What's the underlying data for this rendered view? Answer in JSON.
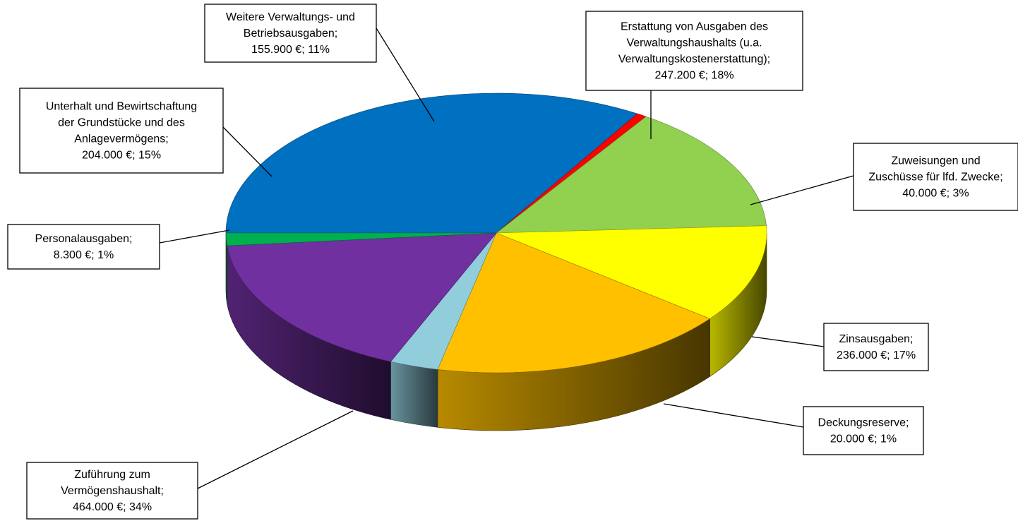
{
  "chart_data": {
    "type": "pie",
    "title": "",
    "slices": [
      {
        "key": "vermoegen",
        "lines": [
          "Zuführung zum",
          "Vermögenshaushalt;",
          "464.000 €; 34%"
        ],
        "value": 464000,
        "percent": 34,
        "color": "#0070C0"
      },
      {
        "key": "personal",
        "lines": [
          "Personalausgaben;",
          "8.300 €; 1%"
        ],
        "value": 8300,
        "percent": 1,
        "color": "#FF0000"
      },
      {
        "key": "unterhalt",
        "lines": [
          "Unterhalt und Bewirtschaftung",
          "der Grundstücke und des",
          "Anlagevermögens;",
          "204.000 €; 15%"
        ],
        "value": 204000,
        "percent": 15,
        "color": "#92D050"
      },
      {
        "key": "weitere",
        "lines": [
          "Weitere Verwaltungs- und",
          "Betriebsausgaben;",
          "155.900 €; 11%"
        ],
        "value": 155900,
        "percent": 11,
        "color": "#FFFF00"
      },
      {
        "key": "erstattung",
        "lines": [
          "Erstattung von Ausgaben des",
          "Verwaltungshaushalts (u.a.",
          "Verwaltungskostenerstattung);",
          "247.200 €; 18%"
        ],
        "value": 247200,
        "percent": 18,
        "color": "#FFC000"
      },
      {
        "key": "zuweisungen",
        "lines": [
          "Zuweisungen und",
          "Zuschüsse für lfd. Zwecke;",
          "40.000 €; 3%"
        ],
        "value": 40000,
        "percent": 3,
        "color": "#92CDDC"
      },
      {
        "key": "zins",
        "lines": [
          "Zinsausgaben;",
          "236.000 €; 17%"
        ],
        "value": 236000,
        "percent": 17,
        "color": "#7030A0"
      },
      {
        "key": "deckung",
        "lines": [
          "Deckungsreserve;",
          "20.000 €; 1%"
        ],
        "value": 20000,
        "percent": 1,
        "color": "#00B050"
      }
    ],
    "start_angle_deg": 180,
    "direction": "clockwise",
    "style": "3d-pie"
  }
}
